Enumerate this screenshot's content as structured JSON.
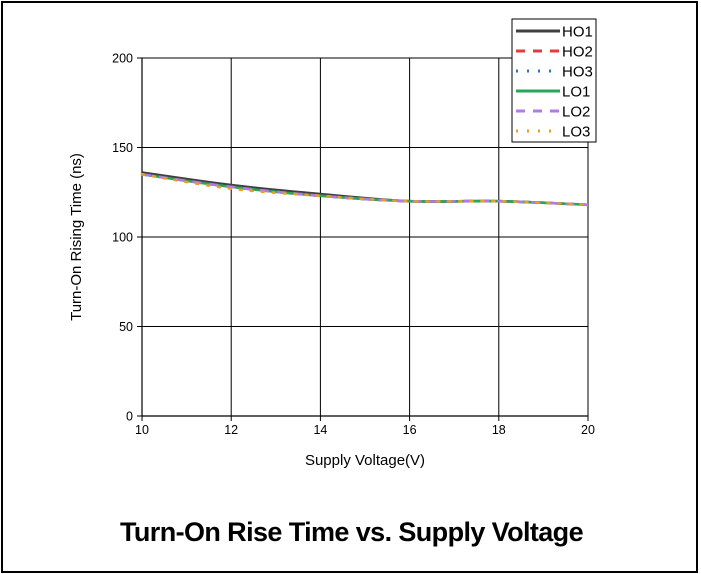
{
  "caption": "Turn-On Rise Time vs. Supply Voltage",
  "chart_data": {
    "type": "line",
    "xlabel": "Supply Voltage(V)",
    "ylabel": "Turn-On Rising Time (ns)",
    "xlim": [
      10,
      20
    ],
    "ylim": [
      0,
      200
    ],
    "xticks": [
      "10",
      "12",
      "14",
      "16",
      "18",
      "20"
    ],
    "yticks": [
      "0",
      "50",
      "100",
      "150",
      "200"
    ],
    "grid": true,
    "legend_position": "top-right",
    "x": [
      10,
      12,
      14,
      16,
      18,
      20
    ],
    "series": [
      {
        "name": "HO1",
        "color": "#404040",
        "style": "solid",
        "values": [
          136,
          129,
          124,
          120,
          120,
          118
        ]
      },
      {
        "name": "HO2",
        "color": "#e03c3c",
        "style": "dashed",
        "values": [
          135,
          128,
          123,
          120,
          120,
          118
        ]
      },
      {
        "name": "HO3",
        "color": "#2e75c8",
        "style": "dotted",
        "values": [
          135,
          128,
          123,
          120,
          120,
          118
        ]
      },
      {
        "name": "LO1",
        "color": "#2aa55a",
        "style": "solid",
        "values": [
          135,
          128,
          123,
          120,
          120,
          118
        ]
      },
      {
        "name": "LO2",
        "color": "#b07be6",
        "style": "dashed",
        "values": [
          135,
          128,
          123,
          120,
          120,
          118
        ]
      },
      {
        "name": "LO3",
        "color": "#e8a020",
        "style": "dotted",
        "values": [
          135,
          127,
          123,
          120,
          120,
          118
        ]
      }
    ]
  }
}
